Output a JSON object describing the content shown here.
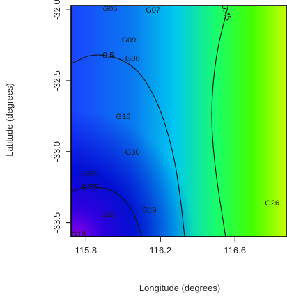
{
  "chart_data": {
    "type": "heatmap",
    "title": "",
    "xlabel": "Longitude (degrees)",
    "ylabel": "Latitude (degrees)",
    "xlim": [
      115.72,
      116.88
    ],
    "ylim": [
      -33.6,
      -31.97
    ],
    "xticks": [
      {
        "value": 115.8,
        "label": "115.8"
      },
      {
        "value": 116.2,
        "label": "116.2"
      },
      {
        "value": 116.6,
        "label": "116.6"
      }
    ],
    "yticks": [
      {
        "value": -32.0,
        "label": "-32.0"
      },
      {
        "value": -32.5,
        "label": "-32.5"
      },
      {
        "value": -33.0,
        "label": "-33.0"
      },
      {
        "value": -33.5,
        "label": "-33.5"
      }
    ],
    "color_ramp": [
      "#8a00e8",
      "#0000cc",
      "#0a78f0",
      "#00d7f0",
      "#1aff66",
      "#44ff00",
      "#c8ff00"
    ],
    "contours": [
      {
        "level": "0.45",
        "points": [
          [
            116.56,
            -31.99
          ],
          [
            116.5,
            -32.3
          ],
          [
            116.47,
            -32.7
          ],
          [
            116.49,
            -33.1
          ],
          [
            116.55,
            -33.6
          ]
        ],
        "label_at": [
          116.555,
          -32.02
        ]
      },
      {
        "level": "0.5",
        "points": [
          [
            115.72,
            -32.38
          ],
          [
            115.85,
            -32.3
          ],
          [
            116.05,
            -32.37
          ],
          [
            116.18,
            -32.62
          ],
          [
            116.27,
            -33.0
          ],
          [
            116.31,
            -33.35
          ],
          [
            116.33,
            -33.6
          ]
        ],
        "label_at": [
          115.92,
          -32.32
        ]
      },
      {
        "level": "0.55",
        "points": [
          [
            115.72,
            -33.28
          ],
          [
            115.82,
            -33.24
          ],
          [
            115.95,
            -33.27
          ],
          [
            116.05,
            -33.4
          ],
          [
            116.1,
            -33.6
          ]
        ],
        "label_at": [
          115.82,
          -33.25
        ]
      }
    ],
    "sites": [
      {
        "label": "G05",
        "lon": 115.93,
        "lat": -31.99
      },
      {
        "label": "G07",
        "lon": 116.16,
        "lat": -32.0
      },
      {
        "label": "G09",
        "lon": 116.03,
        "lat": -32.21
      },
      {
        "label": "G06",
        "lon": 116.05,
        "lat": -32.34
      },
      {
        "label": "G16",
        "lon": 116.0,
        "lat": -32.75
      },
      {
        "label": "G30",
        "lon": 116.05,
        "lat": -33.0
      },
      {
        "label": "G20",
        "lon": 115.82,
        "lat": -33.15
      },
      {
        "label": "G31",
        "lon": 115.92,
        "lat": -33.44
      },
      {
        "label": "G19",
        "lon": 116.14,
        "lat": -33.41
      },
      {
        "label": "G26",
        "lon": 116.8,
        "lat": -33.36
      },
      {
        "label": "G15",
        "lon": 115.76,
        "lat": -33.58
      }
    ]
  }
}
